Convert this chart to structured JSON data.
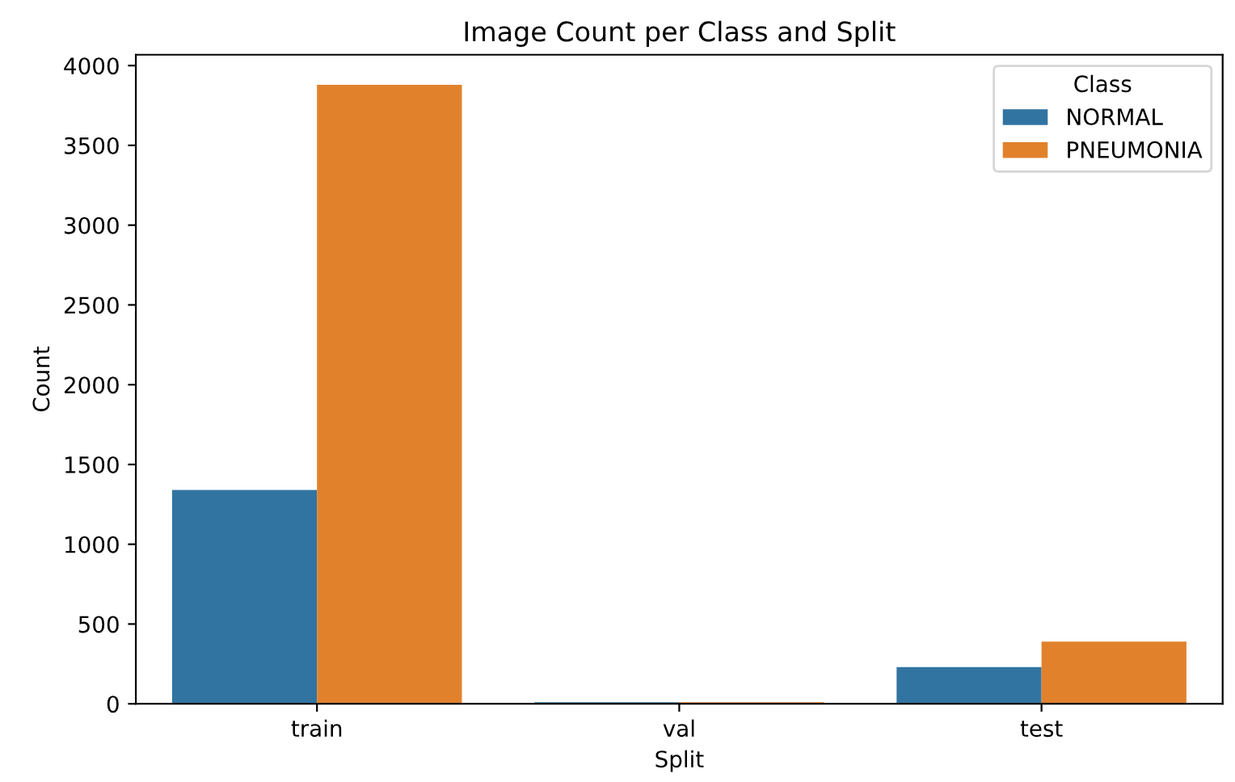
{
  "chart_data": {
    "type": "bar",
    "title": "Image Count per Class and Split",
    "xlabel": "Split",
    "ylabel": "Count",
    "legend_title": "Class",
    "categories": [
      "train",
      "val",
      "test"
    ],
    "series": [
      {
        "name": "NORMAL",
        "color": "#3274a1",
        "values": [
          1340,
          10,
          230
        ]
      },
      {
        "name": "PNEUMONIA",
        "color": "#e1812c",
        "values": [
          3880,
          10,
          390
        ]
      }
    ],
    "ylim": [
      0,
      4068
    ],
    "yticks": [
      0,
      500,
      1000,
      1500,
      2000,
      2500,
      3000,
      3500,
      4000
    ],
    "grid": false,
    "legend": "top right"
  }
}
